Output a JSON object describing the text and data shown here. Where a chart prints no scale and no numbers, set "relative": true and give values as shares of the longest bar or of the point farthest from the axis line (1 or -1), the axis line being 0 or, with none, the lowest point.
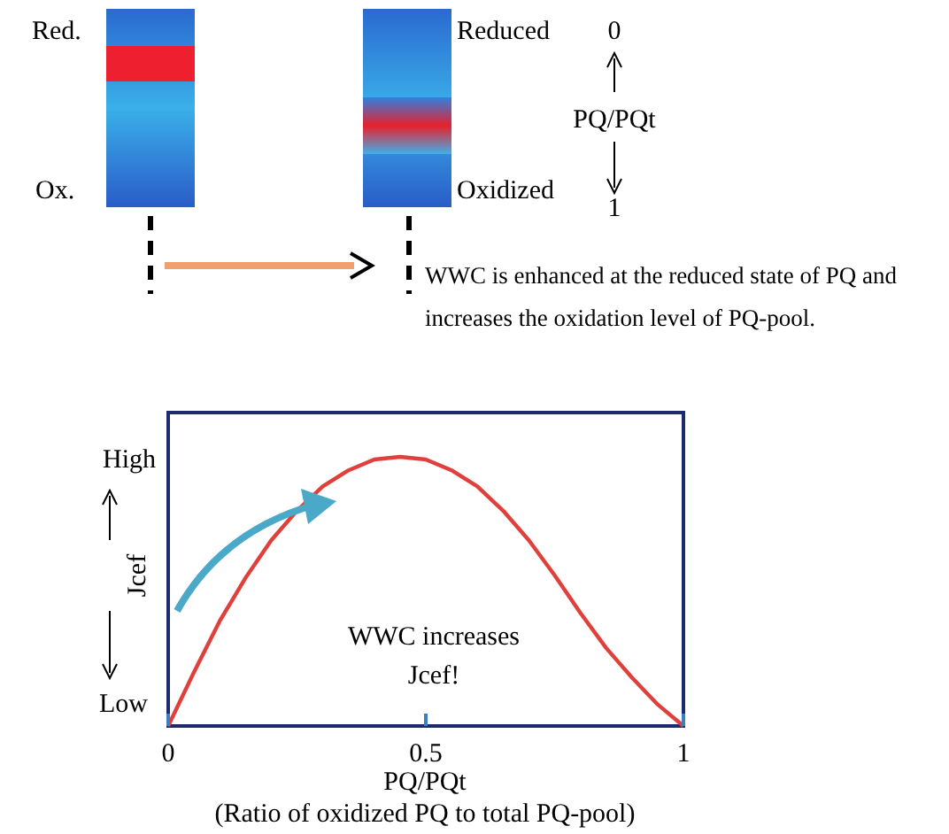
{
  "chart_data": {
    "type": "line",
    "relative": true,
    "xlabel": "PQ/PQt",
    "ylabel": "Jcef",
    "x": [
      0,
      0.05,
      0.1,
      0.15,
      0.2,
      0.25,
      0.3,
      0.35,
      0.4,
      0.45,
      0.5,
      0.55,
      0.6,
      0.65,
      0.7,
      0.75,
      0.8,
      0.85,
      0.9,
      0.95,
      1
    ],
    "series": [
      {
        "color": "#e0403c",
        "values": [
          0,
          0.2,
          0.39,
          0.55,
          0.69,
          0.8,
          0.89,
          0.95,
          0.99,
          1,
          0.99,
          0.95,
          0.89,
          0.8,
          0.69,
          0.56,
          0.42,
          0.29,
          0.18,
          0.08,
          0
        ]
      }
    ],
    "xlim": [
      0,
      1
    ],
    "xticks": [
      0,
      0.5,
      1
    ],
    "line_style": "solid",
    "marker": "none",
    "grid": false,
    "annotations": [
      "Red.",
      "Ox.",
      "Reduced",
      "Oxidized",
      "0",
      "PQ/PQt",
      "1",
      "WWC is enhanced at the reduced state of PQ and",
      "increases the oxidation level of PQ-pool.",
      "High",
      "Low",
      "WWC increases",
      "Jcef!",
      "(Ratio of oxidized PQ to total PQ-pool)"
    ]
  }
}
